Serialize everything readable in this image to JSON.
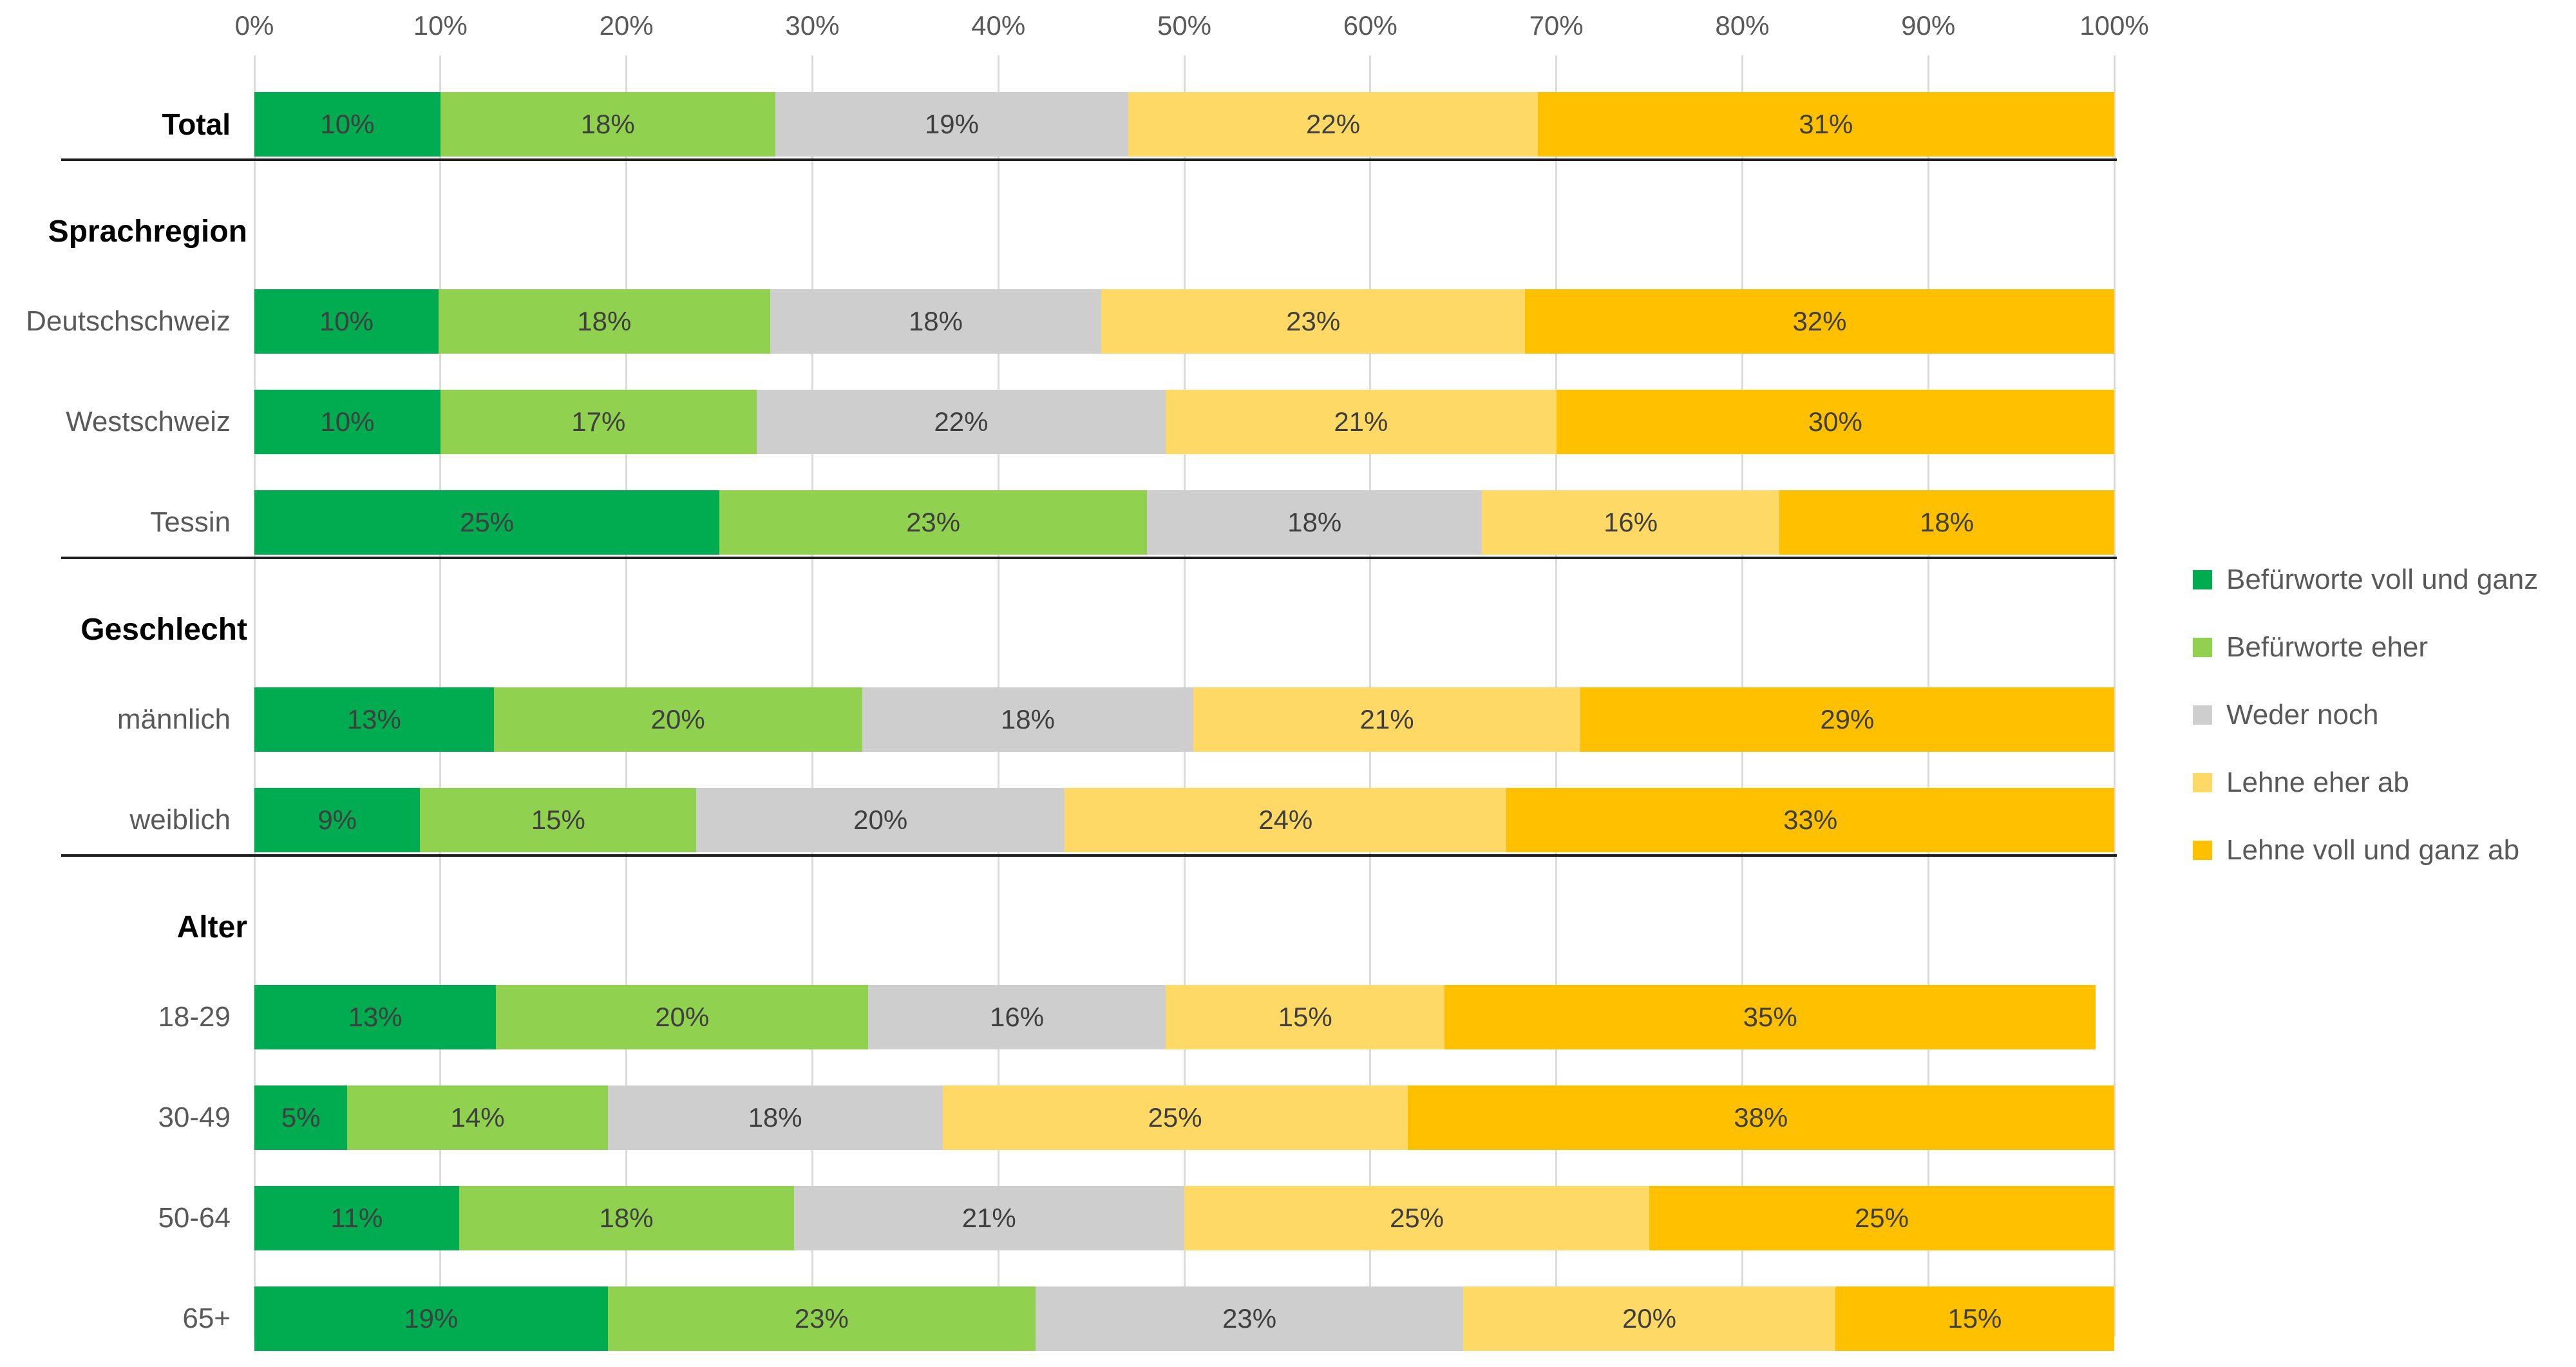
{
  "chart_data": {
    "type": "bar",
    "orientation": "horizontal-stacked",
    "title": "",
    "xlabel": "",
    "ylabel": "",
    "x_axis": {
      "position": "top",
      "range": [
        0,
        100
      ],
      "ticks": [
        "0%",
        "10%",
        "20%",
        "30%",
        "40%",
        "50%",
        "60%",
        "70%",
        "80%",
        "90%",
        "100%"
      ]
    },
    "grid": true,
    "legend_position": "right",
    "value_label_format": "percent",
    "series_labels": [
      "Befürworte voll und ganz",
      "Befürworte eher",
      "Weder noch",
      "Lehne eher ab",
      "Lehne voll und ganz ab"
    ],
    "series_colors": [
      "#00AC4F",
      "#90D150",
      "#CFCECE",
      "#FFD966",
      "#FFC000"
    ],
    "rows": [
      {
        "type": "bar",
        "label": "Total",
        "bold": true,
        "values": [
          10,
          18,
          19,
          22,
          31
        ],
        "value_labels": [
          "10%",
          "18%",
          "19%",
          "22%",
          "31%"
        ],
        "separator_after": true
      },
      {
        "type": "section",
        "label": "Sprachregion"
      },
      {
        "type": "bar",
        "label": "Deutschschweiz",
        "values": [
          10,
          18,
          18,
          23,
          32
        ],
        "value_labels": [
          "10%",
          "18%",
          "18%",
          "23%",
          "32%"
        ]
      },
      {
        "type": "bar",
        "label": "Westschweiz",
        "values": [
          10,
          17,
          22,
          21,
          30
        ],
        "value_labels": [
          "10%",
          "17%",
          "22%",
          "21%",
          "30%"
        ]
      },
      {
        "type": "bar",
        "label": "Tessin",
        "values": [
          25,
          23,
          18,
          16,
          18
        ],
        "value_labels": [
          "25%",
          "23%",
          "18%",
          "16%",
          "18%"
        ],
        "separator_after": true
      },
      {
        "type": "section",
        "label": "Geschlecht"
      },
      {
        "type": "bar",
        "label": "männlich",
        "values": [
          13,
          20,
          18,
          21,
          29
        ],
        "value_labels": [
          "13%",
          "20%",
          "18%",
          "21%",
          "29%"
        ]
      },
      {
        "type": "bar",
        "label": "weiblich",
        "values": [
          9,
          15,
          20,
          24,
          33
        ],
        "value_labels": [
          "9%",
          "15%",
          "20%",
          "24%",
          "33%"
        ],
        "separator_after": true
      },
      {
        "type": "section",
        "label": "Alter"
      },
      {
        "type": "bar",
        "label": "18-29",
        "values": [
          13,
          20,
          16,
          15,
          35
        ],
        "value_labels": [
          "13%",
          "20%",
          "16%",
          "15%",
          "35%"
        ]
      },
      {
        "type": "bar",
        "label": "30-49",
        "values": [
          5,
          14,
          18,
          25,
          38
        ],
        "value_labels": [
          "5%",
          "14%",
          "18%",
          "25%",
          "38%"
        ]
      },
      {
        "type": "bar",
        "label": "50-64",
        "values": [
          11,
          18,
          21,
          25,
          25
        ],
        "value_labels": [
          "11%",
          "18%",
          "21%",
          "25%",
          "25%"
        ]
      },
      {
        "type": "bar",
        "label": "65+",
        "values": [
          19,
          23,
          23,
          20,
          15
        ],
        "value_labels": [
          "19%",
          "23%",
          "23%",
          "20%",
          "15%"
        ]
      }
    ],
    "colors": {
      "gridline": "#DBDBDB",
      "separator_line": "#1F1F1F",
      "axis_text": "#595959",
      "row_label_text": "#595959",
      "segment_label_text": "#3F3F3F",
      "section_header_text": "#000000"
    }
  }
}
